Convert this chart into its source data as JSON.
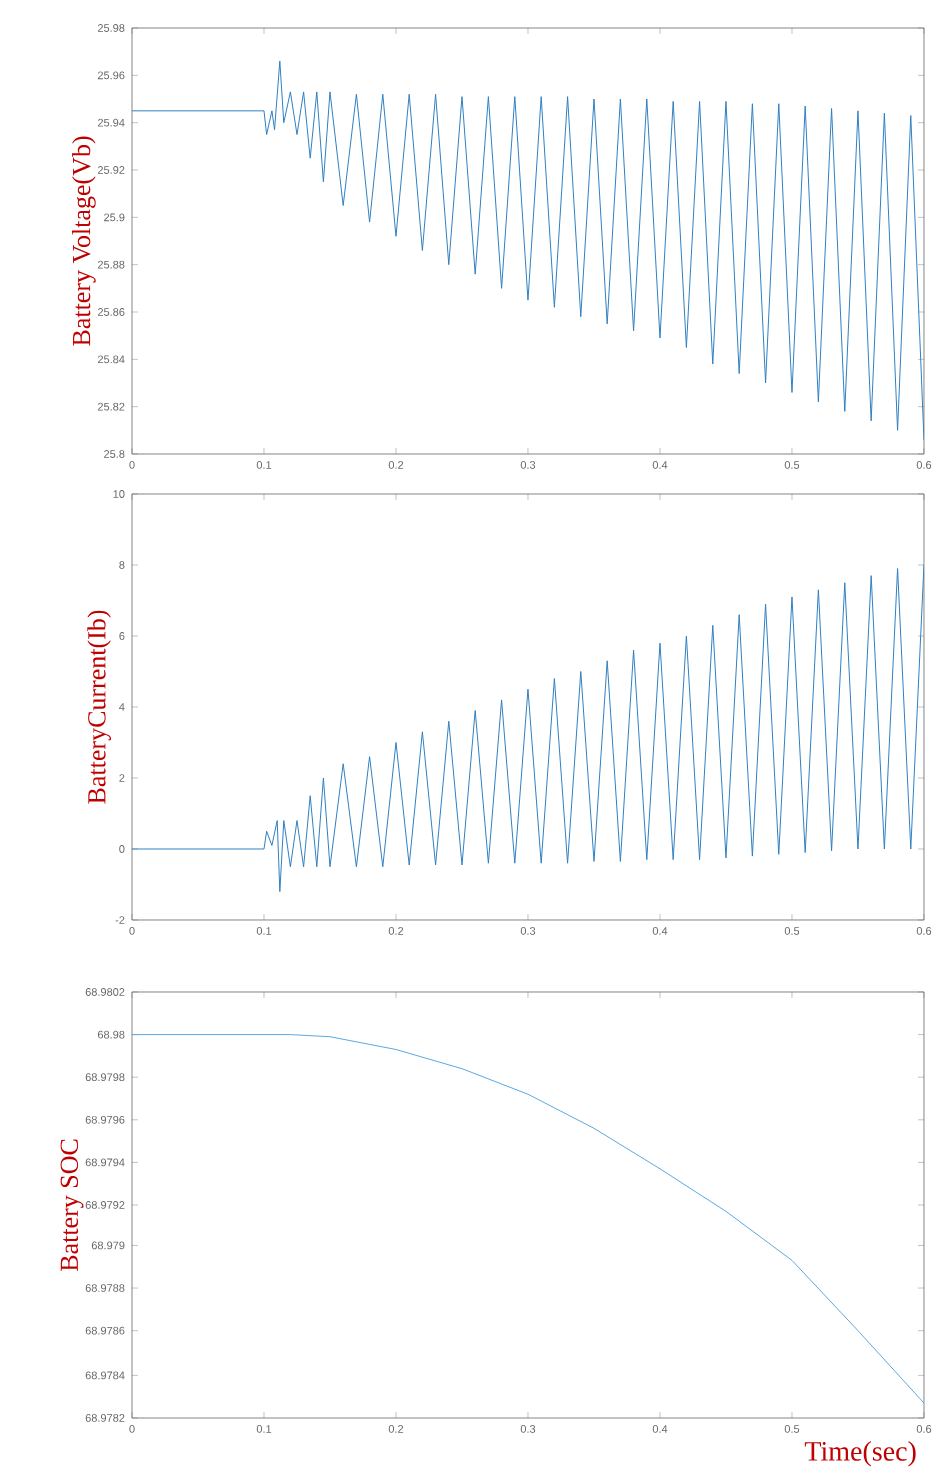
{
  "chart_data": [
    {
      "type": "line",
      "ylabel": "Battery Voltage(Vb)",
      "xlim": [
        0,
        0.6
      ],
      "ylim": [
        25.8,
        25.98
      ],
      "xticks": [
        0,
        0.1,
        0.2,
        0.3,
        0.4,
        0.5,
        0.6
      ],
      "yticks": [
        25.8,
        25.82,
        25.84,
        25.86,
        25.88,
        25.9,
        25.92,
        25.94,
        25.96,
        25.98
      ],
      "x": [
        0,
        0.1,
        0.102,
        0.106,
        0.108,
        0.112,
        0.115,
        0.12,
        0.125,
        0.13,
        0.135,
        0.14,
        0.145,
        0.15,
        0.16,
        0.17,
        0.18,
        0.19,
        0.2,
        0.21,
        0.22,
        0.23,
        0.24,
        0.25,
        0.26,
        0.27,
        0.28,
        0.29,
        0.3,
        0.31,
        0.32,
        0.33,
        0.34,
        0.35,
        0.36,
        0.37,
        0.38,
        0.39,
        0.4,
        0.41,
        0.42,
        0.43,
        0.44,
        0.45,
        0.46,
        0.47,
        0.48,
        0.49,
        0.5,
        0.51,
        0.52,
        0.53,
        0.54,
        0.55,
        0.56,
        0.57,
        0.58,
        0.59,
        0.6
      ],
      "series": [
        {
          "color": "#2f7fc1",
          "values": [
            25.945,
            25.945,
            25.935,
            25.945,
            25.937,
            25.966,
            25.94,
            25.953,
            25.935,
            25.953,
            25.925,
            25.953,
            25.915,
            25.953,
            25.905,
            25.952,
            25.898,
            25.952,
            25.892,
            25.952,
            25.886,
            25.952,
            25.88,
            25.951,
            25.876,
            25.951,
            25.87,
            25.951,
            25.865,
            25.951,
            25.862,
            25.951,
            25.858,
            25.95,
            25.855,
            25.95,
            25.852,
            25.95,
            25.849,
            25.949,
            25.845,
            25.949,
            25.838,
            25.949,
            25.834,
            25.948,
            25.83,
            25.948,
            25.826,
            25.947,
            25.822,
            25.946,
            25.818,
            25.945,
            25.814,
            25.944,
            25.81,
            25.943,
            25.806
          ]
        }
      ]
    },
    {
      "type": "line",
      "ylabel": "BatteryCurrent(Ib)",
      "xlim": [
        0,
        0.6
      ],
      "ylim": [
        -2,
        10
      ],
      "xticks": [
        0,
        0.1,
        0.2,
        0.3,
        0.4,
        0.5,
        0.6
      ],
      "yticks": [
        -2,
        0,
        2,
        4,
        6,
        8,
        10
      ],
      "x": [
        0,
        0.1,
        0.102,
        0.106,
        0.11,
        0.112,
        0.115,
        0.12,
        0.125,
        0.13,
        0.135,
        0.14,
        0.145,
        0.15,
        0.16,
        0.17,
        0.18,
        0.19,
        0.2,
        0.21,
        0.22,
        0.23,
        0.24,
        0.25,
        0.26,
        0.27,
        0.28,
        0.29,
        0.3,
        0.31,
        0.32,
        0.33,
        0.34,
        0.35,
        0.36,
        0.37,
        0.38,
        0.39,
        0.4,
        0.41,
        0.42,
        0.43,
        0.44,
        0.45,
        0.46,
        0.47,
        0.48,
        0.49,
        0.5,
        0.51,
        0.52,
        0.53,
        0.54,
        0.55,
        0.56,
        0.57,
        0.58,
        0.59,
        0.6
      ],
      "series": [
        {
          "color": "#2f7fc1",
          "values": [
            0,
            0,
            0.5,
            0.1,
            0.8,
            -1.2,
            0.8,
            -0.5,
            0.8,
            -0.5,
            1.5,
            -0.5,
            2.0,
            -0.5,
            2.4,
            -0.5,
            2.6,
            -0.5,
            3.0,
            -0.45,
            3.3,
            -0.45,
            3.6,
            -0.45,
            3.9,
            -0.4,
            4.2,
            -0.4,
            4.5,
            -0.4,
            4.8,
            -0.4,
            5.0,
            -0.35,
            5.3,
            -0.35,
            5.6,
            -0.3,
            5.8,
            -0.3,
            6.0,
            -0.3,
            6.3,
            -0.25,
            6.6,
            -0.2,
            6.9,
            -0.15,
            7.1,
            -0.1,
            7.3,
            -0.05,
            7.5,
            0,
            7.7,
            0,
            7.9,
            0,
            8.0
          ]
        }
      ]
    },
    {
      "type": "line",
      "ylabel": "Battery SOC",
      "xlabel": "Time(sec)",
      "xlim": [
        0,
        0.6
      ],
      "ylim": [
        68.9782,
        68.9802
      ],
      "xticks": [
        0,
        0.1,
        0.2,
        0.3,
        0.4,
        0.5,
        0.6
      ],
      "yticks": [
        68.9782,
        68.9784,
        68.9786,
        68.9788,
        68.979,
        68.9792,
        68.9794,
        68.9796,
        68.9798,
        68.98,
        68.9802
      ],
      "x": [
        0,
        0.05,
        0.1,
        0.12,
        0.15,
        0.2,
        0.25,
        0.3,
        0.35,
        0.4,
        0.45,
        0.5,
        0.55,
        0.6
      ],
      "series": [
        {
          "color": "#5aa9e0",
          "values": [
            68.98,
            68.98,
            68.98,
            68.98,
            68.97999,
            68.97993,
            68.97984,
            68.97972,
            68.97956,
            68.97937,
            68.97917,
            68.97894,
            68.97861,
            68.97827
          ]
        }
      ]
    }
  ]
}
